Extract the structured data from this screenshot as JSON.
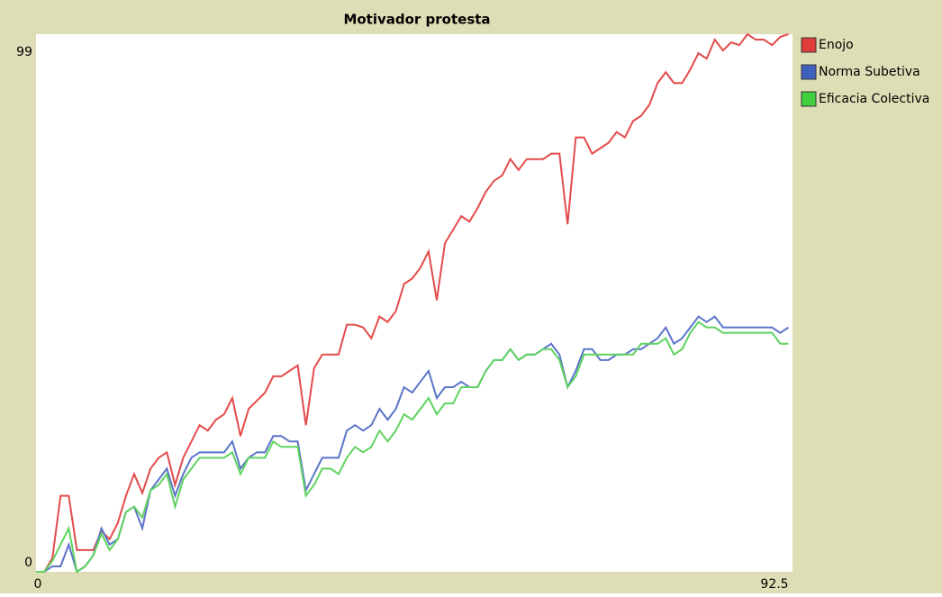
{
  "chart_data": {
    "type": "line",
    "title": "Motivador protesta",
    "x": [
      0,
      1,
      2,
      3,
      4,
      5,
      6,
      7,
      8,
      9,
      10,
      11,
      12,
      13,
      14,
      15,
      16,
      17,
      18,
      19,
      20,
      21,
      22,
      23,
      24,
      25,
      26,
      27,
      28,
      29,
      30,
      31,
      32,
      33,
      34,
      35,
      36,
      37,
      38,
      39,
      40,
      41,
      42,
      43,
      44,
      45,
      46,
      47,
      48,
      49,
      50,
      51,
      52,
      53,
      54,
      55,
      56,
      57,
      58,
      59,
      60,
      61,
      62,
      63,
      64,
      65,
      66,
      67,
      68,
      69,
      70,
      71,
      72,
      73,
      74,
      75,
      76,
      77,
      78,
      79,
      80,
      81,
      82,
      83,
      84,
      85,
      86,
      87,
      88,
      89,
      90,
      91,
      92
    ],
    "series": [
      {
        "name": "Enojo",
        "color": "#e34b4b",
        "legend_color": "#e03c3c",
        "values": [
          0,
          0,
          2.5,
          14,
          14,
          4,
          4,
          4,
          7.5,
          6,
          9,
          14,
          18,
          14.5,
          19,
          21,
          22,
          16,
          21,
          24,
          27,
          26,
          28,
          29,
          32,
          25,
          30,
          31.5,
          33,
          36,
          36,
          37,
          38,
          27,
          37.5,
          40,
          40,
          40,
          45.5,
          45.5,
          45,
          43,
          47,
          46,
          48,
          53,
          54,
          56,
          59,
          50,
          60.5,
          63,
          65.5,
          64.5,
          67,
          70,
          72,
          73,
          76,
          74,
          76,
          76,
          76,
          77,
          77,
          64,
          80,
          80,
          77,
          78,
          79,
          81,
          80,
          83,
          84,
          86,
          90,
          92,
          90,
          90,
          92.5,
          95.5,
          94.5,
          98,
          96,
          97.5,
          97,
          99,
          98,
          98,
          97,
          98.5,
          99
        ]
      },
      {
        "name": "Norma Subetiva",
        "color": "#5b74c9",
        "legend_color": "#4060c0",
        "values": [
          0,
          0,
          1,
          1,
          5,
          0,
          1,
          3,
          8,
          5,
          6,
          11,
          12,
          8,
          15,
          17,
          19,
          14,
          18,
          21,
          22,
          22,
          22,
          22,
          24,
          19,
          21,
          22,
          22,
          25,
          25,
          24,
          24,
          15,
          18,
          21,
          21,
          21,
          26,
          27,
          26,
          27,
          30,
          28,
          30,
          34,
          33,
          35,
          37,
          32,
          34,
          34,
          35,
          34,
          34,
          37,
          39,
          39,
          41,
          39,
          40,
          40,
          41,
          42,
          40,
          34,
          37,
          41,
          41,
          39,
          39,
          40,
          40,
          41,
          41,
          42,
          43,
          45,
          42,
          43,
          45,
          47,
          46,
          47,
          45,
          45,
          45,
          45,
          45,
          45,
          45,
          44,
          45
        ]
      },
      {
        "name": "Eficacia Colectiva",
        "color": "#5fd35f",
        "legend_color": "#40d040",
        "values": [
          0,
          0,
          2,
          5,
          8,
          0,
          1,
          3,
          7,
          4,
          6,
          11,
          12,
          10,
          15,
          16,
          18,
          12,
          17,
          19,
          21,
          21,
          21,
          21,
          22,
          18,
          21,
          21,
          21,
          24,
          23,
          23,
          23,
          14,
          16,
          19,
          19,
          18,
          21,
          23,
          22,
          23,
          26,
          24,
          26,
          29,
          28,
          30,
          32,
          29,
          31,
          31,
          34,
          34,
          34,
          37,
          39,
          39,
          41,
          39,
          40,
          40,
          41,
          41,
          39,
          34,
          36,
          40,
          40,
          40,
          40,
          40,
          40,
          40,
          42,
          42,
          42,
          43,
          40,
          41,
          44,
          46,
          45,
          45,
          44,
          44,
          44,
          44,
          44,
          44,
          44,
          42,
          42
        ]
      }
    ],
    "xlim": [
      0,
      92.5
    ],
    "ylim": [
      0,
      99
    ],
    "xticks": [
      0,
      92.5
    ],
    "yticks": [
      0,
      99
    ],
    "grid": false,
    "legend": "right"
  }
}
